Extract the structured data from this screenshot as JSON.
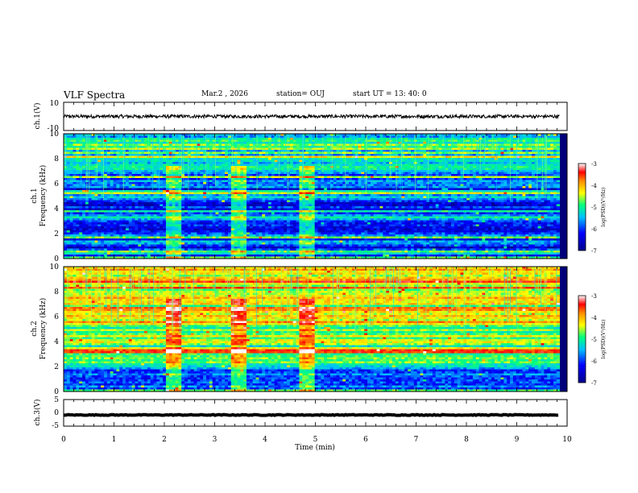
{
  "header": {
    "title": "VLF Spectra",
    "date": "Mar.2  , 2026",
    "station": "station= OUJ",
    "start_ut": "start  UT  =   13: 40: 0"
  },
  "chart_data": [
    {
      "id": "ch1_waveform",
      "type": "line",
      "ylabel": "ch.1(V)",
      "ylim": [
        -10,
        10
      ],
      "yticks": [
        "10",
        "-10"
      ],
      "baseline_value": 0,
      "amplitude": 1.2,
      "color": "#000000"
    },
    {
      "id": "ch1_spectrogram",
      "type": "heatmap",
      "ylabel_top": "ch.1",
      "ylabel": "Frequency  (kHz)",
      "ylim": [
        0,
        10
      ],
      "yticks": [
        "0",
        "2",
        "4",
        "6",
        "8",
        "10"
      ],
      "colorbar": {
        "label": "log(PSD)(V²/Hz)",
        "range": [
          -7,
          -3
        ],
        "ticks": [
          "-3",
          "-4",
          "-5",
          "-6",
          "-7"
        ]
      }
    },
    {
      "id": "ch2_spectrogram",
      "type": "heatmap",
      "ylabel_top": "ch.2",
      "ylabel": "Frequency  (kHz)",
      "ylim": [
        0,
        10
      ],
      "yticks": [
        "0",
        "2",
        "4",
        "6",
        "8",
        "10"
      ],
      "colorbar": {
        "label": "log(PSD)(V²/Hz)",
        "range": [
          -7,
          -3
        ],
        "ticks": [
          "-3",
          "-4",
          "-5",
          "-6",
          "-7"
        ]
      }
    },
    {
      "id": "ch3_waveform",
      "type": "line",
      "ylabel": "ch.3(V)",
      "ylim": [
        -5,
        5
      ],
      "yticks": [
        "5",
        "0",
        "-5"
      ],
      "baseline_value": -0.8,
      "amplitude": 0.15,
      "color": "#000000"
    }
  ],
  "x_axis": {
    "label": "Time  (min)",
    "range": [
      0,
      10
    ],
    "data_end": 9.85,
    "ticks": [
      "0",
      "1",
      "2",
      "3",
      "4",
      "5",
      "6",
      "7",
      "8",
      "9",
      "10"
    ]
  },
  "colors": {
    "colormap": [
      "#00008b",
      "#0000ff",
      "#00bfff",
      "#00ff7f",
      "#ffff00",
      "#ff8c00",
      "#ff0000",
      "#ffffff"
    ],
    "frame": "#000000"
  }
}
